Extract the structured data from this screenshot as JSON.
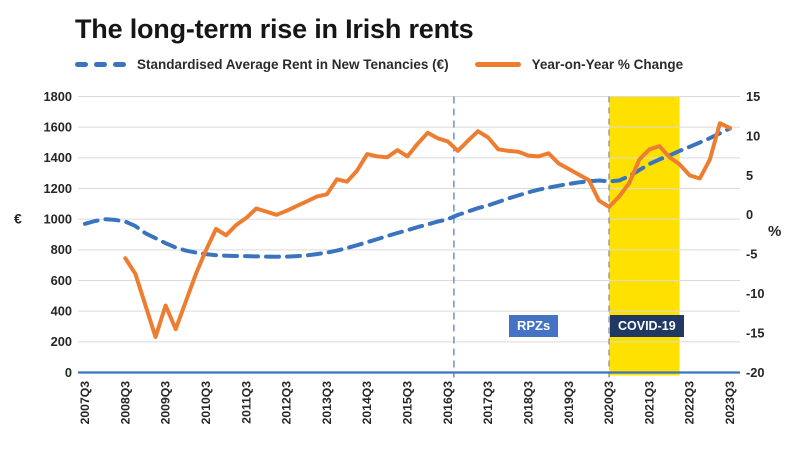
{
  "title": "The long-term rise in Irish rents",
  "legend": [
    {
      "label": "Standardised Average Rent in New Tenancies (€)",
      "color": "#3B74BE",
      "style": "dashed"
    },
    {
      "label": "Year-on-Year % Change",
      "color": "#ED7D31",
      "style": "solid"
    }
  ],
  "chart_data": {
    "type": "line",
    "grid": "horizontal",
    "colors": {
      "rent_line": "#3B74BE",
      "yoy_line": "#ED7D31",
      "gridline": "#DADADA",
      "axis_line": "#3B74BE",
      "rpz_line": "#6F9BD4",
      "covid_line": "#9E9E9E",
      "covid_band": "#FFE100",
      "rpz_box": "#4472C4",
      "covid_box": "#1F3864"
    },
    "axes": {
      "left": {
        "unit": "€",
        "min": 0,
        "max": 1800,
        "step": 200,
        "ticks": [
          0,
          200,
          400,
          600,
          800,
          1000,
          1200,
          1400,
          1600,
          1800
        ]
      },
      "right": {
        "unit": "%",
        "min": -20,
        "max": 15,
        "step": 5,
        "ticks": [
          -20,
          -15,
          -10,
          -5,
          0,
          5,
          10,
          15
        ]
      }
    },
    "x_tick_labels": [
      "2007Q3",
      "2008Q3",
      "2009Q3",
      "2010Q3",
      "2011Q3",
      "2012Q3",
      "2013Q3",
      "2014Q3",
      "2015Q3",
      "2016Q3",
      "2017Q3",
      "2018Q3",
      "2019Q3",
      "2020Q3",
      "2021Q3",
      "2022Q3",
      "2023Q3"
    ],
    "quarters": [
      "2007Q3",
      "2007Q4",
      "2008Q1",
      "2008Q2",
      "2008Q3",
      "2008Q4",
      "2009Q1",
      "2009Q2",
      "2009Q3",
      "2009Q4",
      "2010Q1",
      "2010Q2",
      "2010Q3",
      "2010Q4",
      "2011Q1",
      "2011Q2",
      "2011Q3",
      "2011Q4",
      "2012Q1",
      "2012Q2",
      "2012Q3",
      "2012Q4",
      "2013Q1",
      "2013Q2",
      "2013Q3",
      "2013Q4",
      "2014Q1",
      "2014Q2",
      "2014Q3",
      "2014Q4",
      "2015Q1",
      "2015Q2",
      "2015Q3",
      "2015Q4",
      "2016Q1",
      "2016Q2",
      "2016Q3",
      "2016Q4",
      "2017Q1",
      "2017Q2",
      "2017Q3",
      "2017Q4",
      "2018Q1",
      "2018Q2",
      "2018Q3",
      "2018Q4",
      "2019Q1",
      "2019Q2",
      "2019Q3",
      "2019Q4",
      "2020Q1",
      "2020Q2",
      "2020Q3",
      "2020Q4",
      "2021Q1",
      "2021Q2",
      "2021Q3",
      "2021Q4",
      "2022Q1",
      "2022Q2",
      "2022Q3",
      "2022Q4",
      "2023Q1",
      "2023Q2",
      "2023Q3"
    ],
    "series": [
      {
        "name": "Standardised Average Rent in New Tenancies (€)",
        "axis": "left",
        "style": "dashed",
        "values": [
          970,
          988,
          1000,
          995,
          984,
          955,
          908,
          876,
          843,
          815,
          795,
          782,
          772,
          765,
          762,
          760,
          759,
          757,
          756,
          755,
          756,
          759,
          764,
          772,
          782,
          795,
          812,
          830,
          850,
          870,
          890,
          910,
          928,
          948,
          966,
          984,
          1000,
          1028,
          1050,
          1072,
          1090,
          1112,
          1135,
          1155,
          1175,
          1192,
          1205,
          1218,
          1230,
          1240,
          1246,
          1252,
          1246,
          1252,
          1280,
          1320,
          1360,
          1390,
          1415,
          1445,
          1472,
          1500,
          1528,
          1560,
          1592
        ]
      },
      {
        "name": "Year-on-Year % Change",
        "axis": "right",
        "style": "solid",
        "values": [
          null,
          null,
          null,
          null,
          -5.5,
          -7.5,
          -11.5,
          -15.5,
          -11.5,
          -14.5,
          -11.0,
          -7.5,
          -4.5,
          -1.8,
          -2.6,
          -1.3,
          -0.4,
          0.8,
          0.4,
          0.0,
          0.5,
          1.1,
          1.7,
          2.3,
          2.6,
          4.5,
          4.2,
          5.6,
          7.7,
          7.4,
          7.3,
          8.2,
          7.4,
          9.0,
          10.4,
          9.7,
          9.3,
          8.1,
          9.4,
          10.6,
          9.8,
          8.3,
          8.1,
          8.0,
          7.5,
          7.4,
          7.8,
          6.5,
          5.8,
          5.1,
          4.4,
          1.8,
          1.0,
          2.3,
          4.0,
          7.0,
          8.3,
          8.7,
          7.3,
          6.4,
          5.0,
          4.6,
          7.0,
          11.6,
          11.0
        ]
      }
    ],
    "annotations": {
      "rpz": {
        "label": "RPZs",
        "quarter": "2016Q4"
      },
      "covid": {
        "label": "COVID-19",
        "start_quarter": "2020Q3",
        "end_quarter": "2022Q2"
      }
    }
  }
}
